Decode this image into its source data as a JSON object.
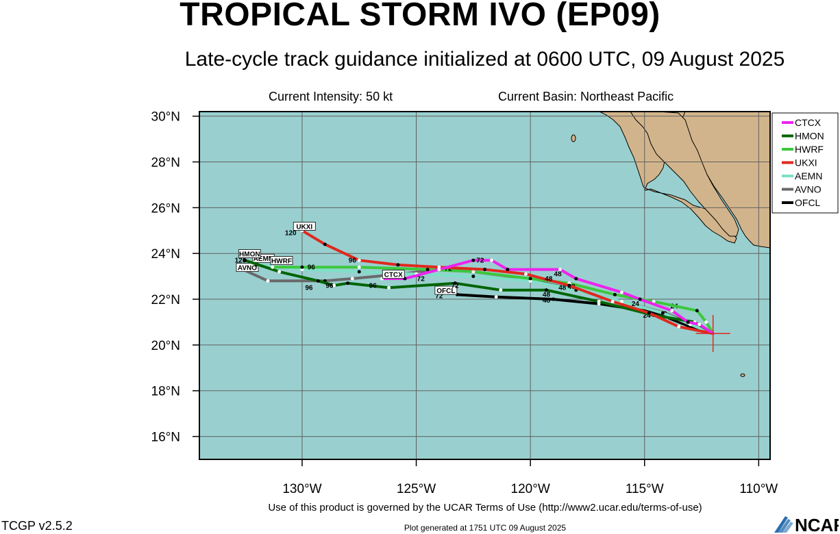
{
  "header": {
    "title": "TROPICAL STORM IVO (EP09)",
    "subtitle": "Late-cycle track guidance initialized at 0600 UTC, 09 August 2025",
    "intensity": "Current Intensity: 50 kt",
    "basin": "Current Basin: Northeast Pacific"
  },
  "footer": {
    "terms": "Use of this product is governed by the UCAR Terms of Use (http://www2.ucar.edu/terms-of-use)",
    "version": "TCGP v2.5.2",
    "generated": "Plot generated at 1751 UTC   09 August 2025",
    "logo_text": "NCAR"
  },
  "colors": {
    "ocean": "#99cfcf",
    "land": "#d2b48c",
    "current_position": "#e0281e"
  },
  "chart_data": {
    "type": "line",
    "xlabel": "",
    "ylabel": "",
    "xlim": [
      -134.5,
      -109.5
    ],
    "ylim": [
      15,
      30.2
    ],
    "x_ticks": [
      {
        "value": -130,
        "label": "130°W"
      },
      {
        "value": -125,
        "label": "125°W"
      },
      {
        "value": -120,
        "label": "120°W"
      },
      {
        "value": -115,
        "label": "115°W"
      },
      {
        "value": -110,
        "label": "110°W"
      }
    ],
    "y_ticks": [
      {
        "value": 16,
        "label": "16°N"
      },
      {
        "value": 18,
        "label": "18°N"
      },
      {
        "value": 20,
        "label": "20°N"
      },
      {
        "value": 22,
        "label": "22°N"
      },
      {
        "value": 24,
        "label": "24°N"
      },
      {
        "value": 26,
        "label": "26°N"
      },
      {
        "value": 28,
        "label": "28°N"
      },
      {
        "value": 30,
        "label": "30°N"
      }
    ],
    "grid": true,
    "legend_position": "right",
    "current_position": {
      "lon": -112.0,
      "lat": 20.5
    },
    "series": [
      {
        "name": "OFCL",
        "color": "#000000",
        "points": [
          [
            -112.0,
            20.5
          ],
          [
            -112.3,
            20.6
          ],
          [
            -113.0,
            20.8
          ],
          [
            -114.0,
            21.2
          ],
          [
            -115.0,
            21.5
          ],
          [
            -117.0,
            21.8
          ],
          [
            -119.0,
            22.0
          ],
          [
            -121.5,
            22.1
          ],
          [
            -123.2,
            22.2
          ]
        ],
        "labels": [
          {
            "text": "24",
            "lon": -114.9,
            "lat": 21.2
          },
          {
            "text": "48",
            "lon": -119.3,
            "lat": 21.85
          },
          {
            "text": "72",
            "lon": -124.0,
            "lat": 22.05
          }
        ],
        "end_label": {
          "text": "OFCL",
          "lon": -123.7,
          "lat": 22.3
        }
      },
      {
        "name": "AVNO",
        "color": "#696969",
        "points": [
          [
            -112.0,
            20.5
          ],
          [
            -112.9,
            20.9
          ],
          [
            -114.1,
            21.4
          ],
          [
            -116.0,
            21.9
          ],
          [
            -118.0,
            22.4
          ],
          [
            -120.2,
            22.9
          ],
          [
            -122.5,
            23.2
          ],
          [
            -124.0,
            23.3
          ],
          [
            -125.7,
            23.1
          ],
          [
            -127.8,
            22.9
          ],
          [
            -129.0,
            22.8
          ],
          [
            -131.5,
            22.8
          ],
          [
            -132.6,
            23.3
          ]
        ],
        "labels": [],
        "end_label": {
          "text": "AVNO",
          "lon": -132.4,
          "lat": 23.3
        }
      },
      {
        "name": "AEMN",
        "color": "#7fdfc7",
        "points": [
          [
            -112.0,
            20.5
          ],
          [
            -113.0,
            20.9
          ],
          [
            -114.2,
            21.4
          ],
          [
            -116.0,
            21.9
          ],
          [
            -118.0,
            22.4
          ],
          [
            -120.0,
            22.8
          ],
          [
            -122.5,
            23.0
          ],
          [
            -125.0,
            23.1
          ],
          [
            -127.5,
            23.2
          ],
          [
            -130.0,
            23.3
          ],
          [
            -132.0,
            23.5
          ]
        ],
        "labels": [],
        "end_label": {
          "text": "AEMN",
          "lon": -131.7,
          "lat": 23.7
        }
      },
      {
        "name": "HMON",
        "color": "#006400",
        "points": [
          [
            -112.0,
            20.5
          ],
          [
            -112.8,
            21.0
          ],
          [
            -114.6,
            21.3
          ],
          [
            -117.0,
            21.9
          ],
          [
            -119.3,
            22.4
          ],
          [
            -121.3,
            22.4
          ],
          [
            -123.3,
            22.7
          ],
          [
            -126.2,
            22.5
          ],
          [
            -128.0,
            22.7
          ],
          [
            -128.6,
            22.6
          ],
          [
            -129.3,
            22.8
          ],
          [
            -131.0,
            23.2
          ],
          [
            -132.5,
            23.7
          ]
        ],
        "labels": [
          {
            "text": "24",
            "lon": -113.7,
            "lat": 21.6
          },
          {
            "text": "48",
            "lon": -118.6,
            "lat": 22.4
          },
          {
            "text": "48",
            "lon": -119.3,
            "lat": 22.1
          },
          {
            "text": "72",
            "lon": -123.3,
            "lat": 22.5
          },
          {
            "text": "96",
            "lon": -126.9,
            "lat": 22.5
          },
          {
            "text": "96",
            "lon": -128.8,
            "lat": 22.5
          },
          {
            "text": "96",
            "lon": -129.7,
            "lat": 22.4
          },
          {
            "text": "120",
            "lon": -132.7,
            "lat": 23.6
          }
        ],
        "end_label": {
          "text": "HMON",
          "lon": -132.3,
          "lat": 23.9
        }
      },
      {
        "name": "HWRF",
        "color": "#3cc83c",
        "points": [
          [
            -112.0,
            20.5
          ],
          [
            -112.3,
            21.0
          ],
          [
            -112.7,
            21.5
          ],
          [
            -114.6,
            21.9
          ],
          [
            -116.3,
            22.2
          ],
          [
            -118.3,
            22.7
          ],
          [
            -120.0,
            22.9
          ],
          [
            -122.5,
            23.2
          ],
          [
            -124.5,
            23.3
          ],
          [
            -127.5,
            23.4
          ],
          [
            -130.0,
            23.4
          ],
          [
            -131.3,
            23.4
          ]
        ],
        "labels": [
          {
            "text": "48",
            "lon": -118.2,
            "lat": 22.45
          },
          {
            "text": "72",
            "lon": -123.6,
            "lat": 23.25
          },
          {
            "text": "96",
            "lon": -129.6,
            "lat": 23.3
          }
        ],
        "end_label": {
          "text": "HWRF",
          "lon": -130.9,
          "lat": 23.6
        }
      },
      {
        "name": "UKXI",
        "color": "#e0281e",
        "points": [
          [
            -112.0,
            20.5
          ],
          [
            -113.5,
            20.8
          ],
          [
            -114.8,
            21.4
          ],
          [
            -116.4,
            21.9
          ],
          [
            -118.3,
            22.6
          ],
          [
            -120.2,
            23.1
          ],
          [
            -122.0,
            23.3
          ],
          [
            -124.0,
            23.4
          ],
          [
            -125.8,
            23.5
          ],
          [
            -127.5,
            23.7
          ],
          [
            -129.0,
            24.4
          ],
          [
            -130.0,
            25.0
          ]
        ],
        "labels": [
          {
            "text": "24",
            "lon": -115.4,
            "lat": 21.7
          },
          {
            "text": "48",
            "lon": -119.2,
            "lat": 22.8
          },
          {
            "text": "72",
            "lon": -124.8,
            "lat": 22.8
          },
          {
            "text": "96",
            "lon": -127.8,
            "lat": 23.6
          },
          {
            "text": "120",
            "lon": -130.5,
            "lat": 24.8
          }
        ],
        "end_label": {
          "text": "UKXI",
          "lon": -129.9,
          "lat": 25.1
        }
      },
      {
        "name": "CTCX",
        "color": "#ee22ee",
        "points": [
          [
            -112.0,
            20.5
          ],
          [
            -112.6,
            20.9
          ],
          [
            -113.1,
            21.0
          ],
          [
            -113.8,
            21.5
          ],
          [
            -115.2,
            22.0
          ],
          [
            -116.0,
            22.3
          ],
          [
            -118.0,
            22.9
          ],
          [
            -118.7,
            23.3
          ],
          [
            -121.0,
            23.3
          ],
          [
            -121.7,
            23.7
          ],
          [
            -122.5,
            23.7
          ],
          [
            -124.0,
            23.3
          ],
          [
            -125.5,
            22.9
          ],
          [
            -126.5,
            22.9
          ]
        ],
        "labels": [
          {
            "text": "72",
            "lon": -122.2,
            "lat": 23.6
          },
          {
            "text": "48",
            "lon": -118.8,
            "lat": 23.0
          }
        ],
        "end_label": {
          "text": "CTCX",
          "lon": -126.0,
          "lat": 23.0
        }
      }
    ]
  }
}
